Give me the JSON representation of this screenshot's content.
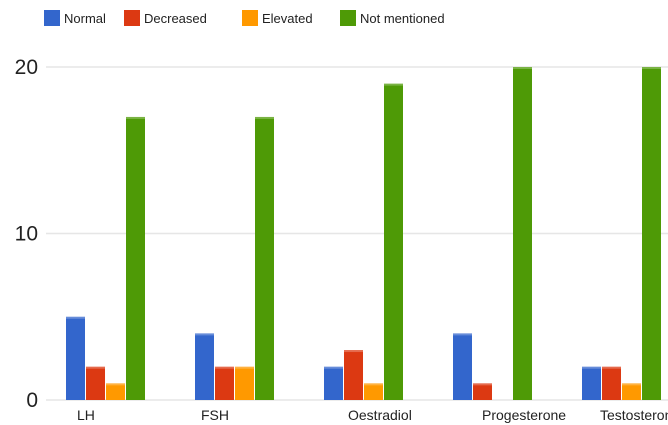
{
  "chart_data": {
    "type": "bar",
    "title": "",
    "xlabel": "",
    "ylabel": "",
    "categories": [
      "LH",
      "FSH",
      "Oestradiol",
      "Progesterone",
      "Testosterone"
    ],
    "series": [
      {
        "name": "Normal",
        "color": "#3366cc",
        "values": [
          5,
          4,
          2,
          4,
          2
        ]
      },
      {
        "name": "Decreased",
        "color": "#dc3912",
        "values": [
          2,
          2,
          3,
          1,
          2
        ]
      },
      {
        "name": "Elevated",
        "color": "#ff9900",
        "values": [
          1,
          2,
          1,
          0,
          1
        ]
      },
      {
        "name": "Not mentioned",
        "color": "#4e9a06",
        "values": [
          17,
          17,
          19,
          20,
          20
        ]
      }
    ],
    "ylim": [
      0,
      20
    ],
    "yticks": [
      {
        "value": 0,
        "label": "0"
      },
      {
        "value": 10,
        "label": "10"
      },
      {
        "value": 20,
        "label": "20"
      }
    ],
    "grid": true,
    "legend_position": "top-left"
  }
}
